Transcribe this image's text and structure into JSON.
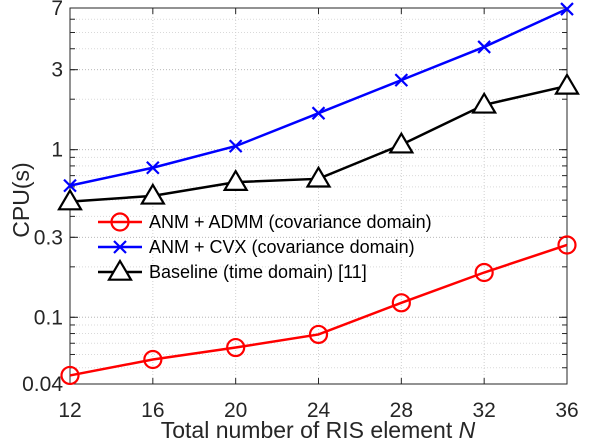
{
  "chart_data": {
    "type": "line",
    "xlabel": "Total number of RIS element",
    "xlabel_var": "N",
    "ylabel": "CPU(s)",
    "yscale": "log",
    "xlim": [
      12,
      36
    ],
    "ylim": [
      0.04,
      7
    ],
    "x": [
      12,
      16,
      20,
      24,
      28,
      32,
      36
    ],
    "x_ticks": [
      "12",
      "16",
      "20",
      "24",
      "28",
      "32",
      "36"
    ],
    "y_ticks": [
      {
        "value": 0.04,
        "label": "0.04"
      },
      {
        "value": 0.1,
        "label": "0.1"
      },
      {
        "value": 0.3,
        "label": "0.3"
      },
      {
        "value": 1,
        "label": "1"
      },
      {
        "value": 3,
        "label": "3"
      },
      {
        "value": 7,
        "label": "7"
      }
    ],
    "grid": true,
    "legend_position": "center-left",
    "series": [
      {
        "name": "ANM + ADMM (covariance domain)",
        "color": "#ff0000",
        "marker": "circle",
        "values": [
          0.045,
          0.056,
          0.066,
          0.079,
          0.122,
          0.185,
          0.27
        ]
      },
      {
        "name": "ANM + CVX (covariance domain)",
        "color": "#0000ff",
        "marker": "x",
        "values": [
          0.61,
          0.78,
          1.05,
          1.65,
          2.6,
          4.1,
          6.9
        ]
      },
      {
        "name": "Baseline (time domain) [11]",
        "color": "#000000",
        "marker": "triangle",
        "values": [
          0.49,
          0.53,
          0.64,
          0.67,
          1.07,
          1.85,
          2.4
        ]
      }
    ]
  }
}
